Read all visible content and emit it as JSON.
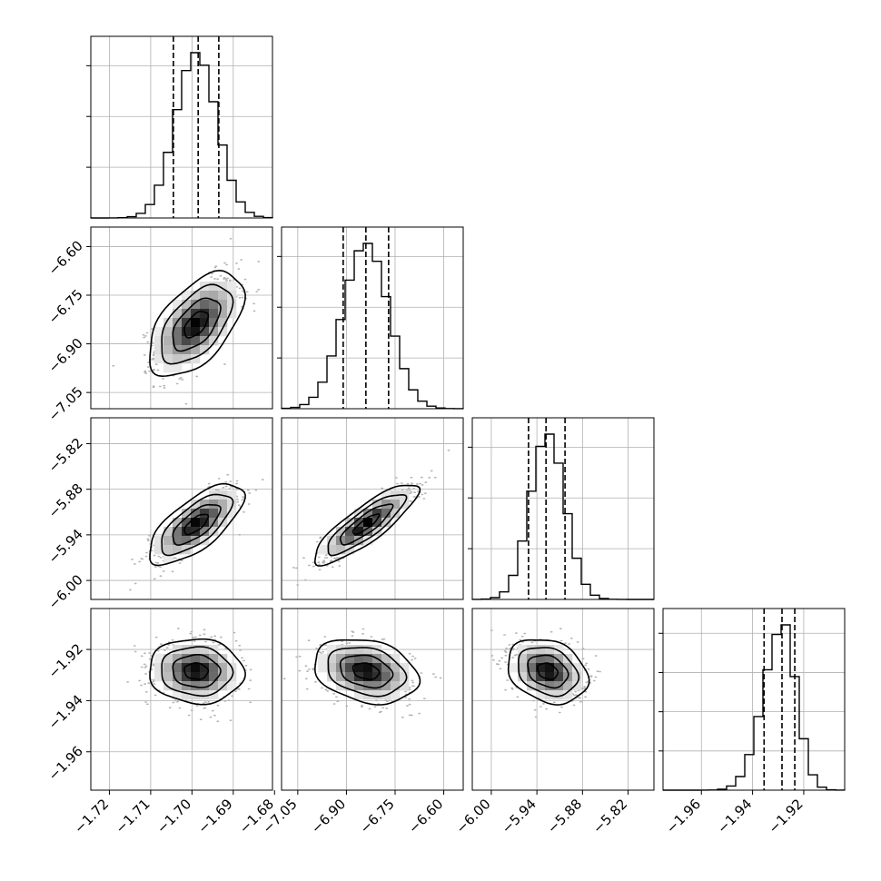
{
  "chart_data": {
    "type": "corner",
    "grid": true,
    "parameters": [
      {
        "ticks": [
          "−1.72",
          "−1.71",
          "−1.70",
          "−1.69",
          "−1.68"
        ],
        "tick_values": [
          -1.72,
          -1.71,
          -1.7,
          -1.69,
          -1.68
        ],
        "range": [
          -1.7245,
          -1.6805
        ]
      },
      {
        "ticks": [
          "−7.05",
          "−6.90",
          "−6.75",
          "−6.60"
        ],
        "tick_values": [
          -7.05,
          -6.9,
          -6.75,
          -6.6
        ],
        "range": [
          -7.1,
          -6.54
        ]
      },
      {
        "ticks": [
          "−6.00",
          "−5.94",
          "−5.88",
          "−5.82"
        ],
        "tick_values": [
          -6.0,
          -5.94,
          -5.88,
          -5.82
        ],
        "range": [
          -6.025,
          -5.786
        ]
      },
      {
        "ticks": [
          "−1.96",
          "−1.94",
          "−1.92"
        ],
        "tick_values": [
          -1.96,
          -1.94,
          -1.92
        ],
        "range": [
          -1.975,
          -1.904
        ]
      }
    ],
    "marginals": [
      {
        "quantiles": [
          -1.7045,
          -1.6985,
          -1.6935
        ],
        "mean": -1.699,
        "sd": 0.005,
        "ymax_ticks": 3
      },
      {
        "quantiles": [
          -6.91,
          -6.84,
          -6.77
        ],
        "mean": -6.84,
        "sd": 0.07,
        "ymax_ticks": 3
      },
      {
        "quantiles": [
          -5.951,
          -5.928,
          -5.903
        ],
        "mean": -5.926,
        "sd": 0.023,
        "ymax_ticks": 3
      },
      {
        "quantiles": [
          -1.9355,
          -1.9285,
          -1.9235
        ],
        "mean": -1.9285,
        "sd": 0.0055,
        "skew": -0.6,
        "ymax_ticks": 4
      }
    ],
    "pairs": [
      {
        "row": 1,
        "col": 0,
        "corr": 0.55
      },
      {
        "row": 2,
        "col": 0,
        "corr": 0.7
      },
      {
        "row": 2,
        "col": 1,
        "corr": 0.85
      },
      {
        "row": 3,
        "col": 0,
        "corr": -0.05
      },
      {
        "row": 3,
        "col": 1,
        "corr": -0.25
      },
      {
        "row": 3,
        "col": 2,
        "corr": -0.25
      }
    ],
    "contour_levels_sigma": [
      0.5,
      1.0,
      1.5,
      2.0
    ],
    "colors": {
      "hist": "#000000",
      "points": "#b5b5b5",
      "density_dark": "#000000",
      "density_light": "#ffffff"
    }
  }
}
